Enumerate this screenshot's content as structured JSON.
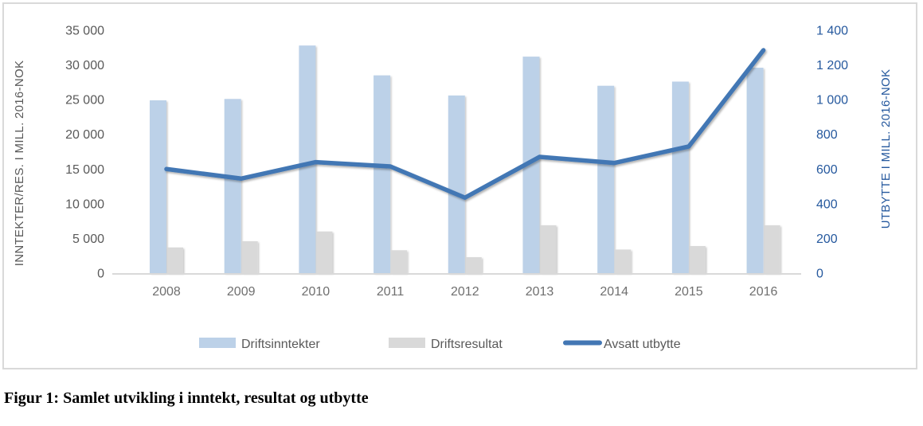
{
  "figure": {
    "caption": "Figur 1: Samlet utvikling i inntekt, resultat og utbytte"
  },
  "chart_data": {
    "type": "combo-bar-line",
    "categories": [
      "2008",
      "2009",
      "2010",
      "2011",
      "2012",
      "2013",
      "2014",
      "2015",
      "2016"
    ],
    "series": [
      {
        "name": "Driftsinntekter",
        "type": "bar",
        "axis": "left",
        "color": "#bcd1e8",
        "values": [
          24900,
          25100,
          32800,
          28500,
          25600,
          31200,
          27000,
          27600,
          29600
        ]
      },
      {
        "name": "Driftsresultat",
        "type": "bar",
        "axis": "left",
        "color": "#d9d9d9",
        "values": [
          3700,
          4600,
          6000,
          3300,
          2300,
          6900,
          3400,
          3900,
          6900
        ]
      },
      {
        "name": "Avsatt utbytte",
        "type": "line",
        "axis": "right",
        "color": "#4377b4",
        "values": [
          600,
          545,
          640,
          615,
          435,
          670,
          635,
          730,
          1285
        ]
      }
    ],
    "left_axis": {
      "title": "INNTEKTER/RES. I MILL. 2016-NOK",
      "min": 0,
      "max": 35000,
      "tick_labels": [
        "0",
        "5 000",
        "10 000",
        "15 000",
        "20 000",
        "25 000",
        "30 000",
        "35 000"
      ]
    },
    "right_axis": {
      "title": "UTBYTTE I MILL. 2016-NOK",
      "min": 0,
      "max": 1400,
      "tick_labels": [
        "0",
        "200",
        "400",
        "600",
        "800",
        "1 000",
        "1 200",
        "1 400"
      ]
    },
    "legend_position": "bottom",
    "grid": false
  },
  "colors": {
    "left_axis_text": "#595959",
    "x_axis_text": "#6f6f6f",
    "right_axis_text": "#26599e",
    "legend_text": "#595959",
    "axis_line": "#d9d9d9",
    "frame_border": "#d9d9d9"
  }
}
